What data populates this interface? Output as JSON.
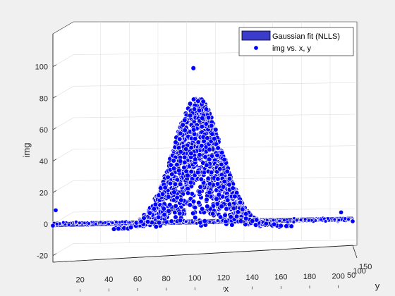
{
  "chart_data": {
    "type": "scatter",
    "subtype": "3d-surface-fit-with-scatter",
    "xlabel": "x",
    "ylabel": "y",
    "zlabel": "img",
    "xlim": [
      1,
      210
    ],
    "ylim": [
      1,
      160
    ],
    "zlim": [
      -20,
      100
    ],
    "x_ticks": [
      "20",
      "40",
      "60",
      "80",
      "100",
      "120",
      "140",
      "160",
      "180",
      "200"
    ],
    "y_ticks": [
      "50",
      "100",
      "150"
    ],
    "z_ticks": [
      "-20",
      "0",
      "20",
      "40",
      "60",
      "80",
      "100"
    ],
    "grid": true,
    "legend_position": "top-right",
    "series": [
      {
        "name": "Gaussian fit (NLLS)",
        "kind": "surface",
        "color": "#3b3bcc"
      },
      {
        "name": "img vs. x, y",
        "kind": "points",
        "color": "#0000ff",
        "peak": {
          "x": 97,
          "y": 80,
          "z": 101
        },
        "core_center_x": 100,
        "core_peak_z": 82,
        "baseline_z": 0,
        "notable_points": [
          {
            "x": 1,
            "y": 80,
            "z": 12
          },
          {
            "x": 200,
            "y": 80,
            "z": 8
          },
          {
            "x": 1,
            "y": 1,
            "z": -1
          },
          {
            "x": 210,
            "y": 1,
            "z": -1
          }
        ]
      }
    ]
  },
  "colors": {
    "figure_bg": "#f0f0f0",
    "axes_bg": "#ffffff",
    "point": "#0000ff",
    "surface": "#3b3bcc"
  }
}
